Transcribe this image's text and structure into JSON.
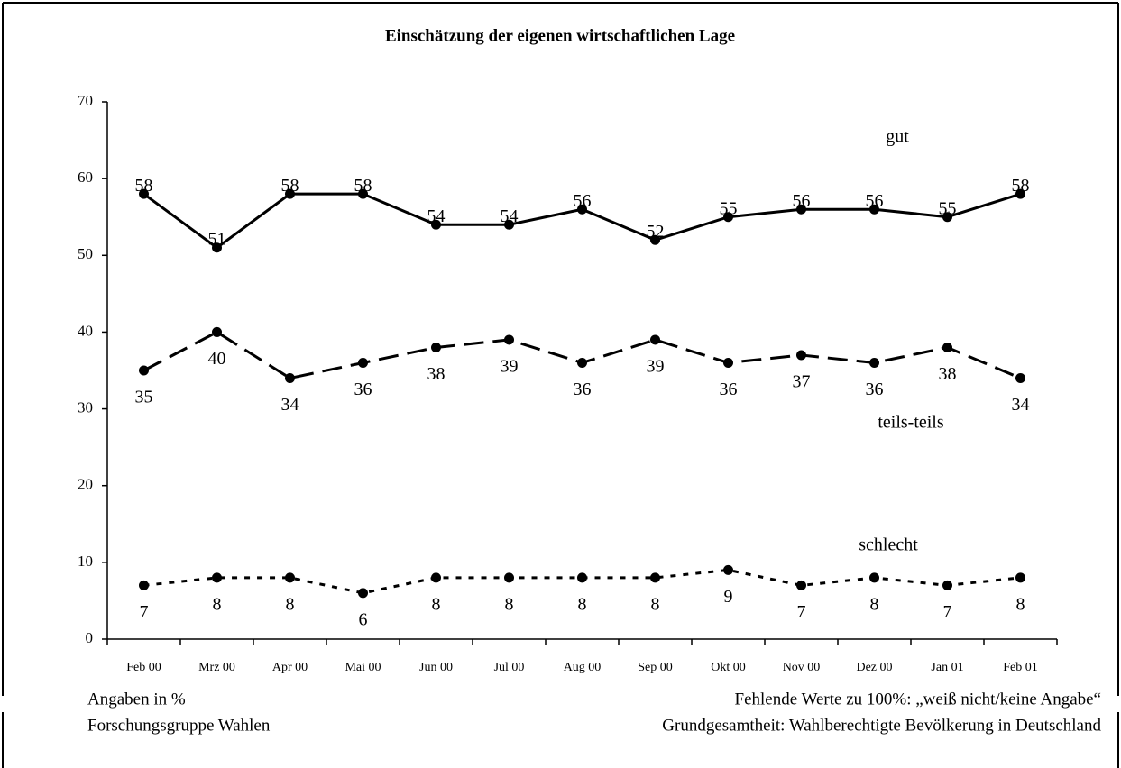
{
  "chart_data": {
    "type": "line",
    "title": "Einschätzung der eigenen wirtschaftlichen Lage",
    "categories": [
      "Feb 00",
      "Mrz 00",
      "Apr 00",
      "Mai 00",
      "Jun 00",
      "Jul 00",
      "Aug 00",
      "Sep 00",
      "Okt 00",
      "Nov 00",
      "Dez 00",
      "Jan 01",
      "Feb 01"
    ],
    "series": [
      {
        "name": "gut",
        "color": "#000000",
        "line_style": "solid",
        "values": [
          58,
          51,
          58,
          58,
          54,
          54,
          56,
          52,
          55,
          56,
          56,
          55,
          58
        ]
      },
      {
        "name": "teils-teils",
        "color": "#000000",
        "line_style": "dashed",
        "values": [
          35,
          40,
          34,
          36,
          38,
          39,
          36,
          39,
          36,
          37,
          36,
          38,
          34
        ]
      },
      {
        "name": "schlecht",
        "color": "#000000",
        "line_style": "dotted",
        "values": [
          7,
          8,
          8,
          6,
          8,
          8,
          8,
          8,
          9,
          7,
          8,
          7,
          8
        ]
      }
    ],
    "ylim": [
      0,
      70
    ],
    "yticks": [
      0,
      10,
      20,
      30,
      40,
      50,
      60,
      70
    ],
    "grid": false,
    "notes": {
      "left": [
        "Angaben in %",
        "Forschungsgruppe Wahlen"
      ],
      "right": [
        "Fehlende Werte zu 100%: „weiß nicht/keine Angabe“",
        "Grundgesamtheit: Wahlberechtigte Bevölkerung in Deutschland"
      ]
    }
  }
}
